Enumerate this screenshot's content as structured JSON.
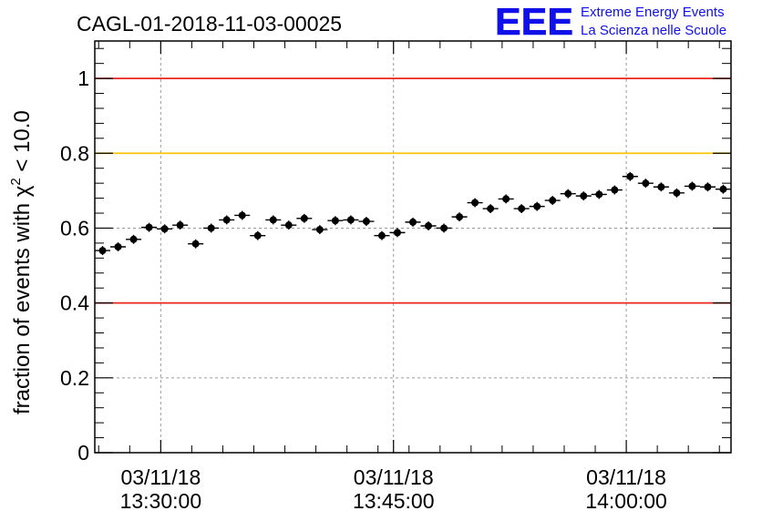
{
  "chart_data": {
    "type": "scatter",
    "title": "CAGL-01-2018-11-03-00025",
    "ylabel_main": "fraction of events with χ",
    "ylabel_sup": "2",
    "ylabel_tail": " < 10.0",
    "xlabel": "",
    "ylim": [
      0,
      1.1
    ],
    "xlim": [
      "2018-11-03 13:25:45",
      "2018-11-03 14:06:45"
    ],
    "grid": true,
    "yticks": [
      {
        "value": 0,
        "label": "0"
      },
      {
        "value": 0.2,
        "label": "0.2"
      },
      {
        "value": 0.4,
        "label": "0.4"
      },
      {
        "value": 0.6,
        "label": "0.6"
      },
      {
        "value": 0.8,
        "label": "0.8"
      },
      {
        "value": 1,
        "label": "1"
      }
    ],
    "xticks": [
      {
        "time": "2018-11-03 13:30:00",
        "date": "03/11/18",
        "clock": "13:30:00"
      },
      {
        "time": "2018-11-03 13:45:00",
        "date": "03/11/18",
        "clock": "13:45:00"
      },
      {
        "time": "2018-11-03 14:00:00",
        "date": "03/11/18",
        "clock": "14:00:00"
      }
    ],
    "reference_lines": [
      {
        "y": 1.0,
        "color": "#e8251e"
      },
      {
        "y": 0.8,
        "color": "#f7c60a"
      },
      {
        "y": 0.4,
        "color": "#e8251e"
      }
    ],
    "points": [
      {
        "t": "13:26:15",
        "y": 0.54
      },
      {
        "t": "13:27:15",
        "y": 0.55
      },
      {
        "t": "13:28:15",
        "y": 0.57
      },
      {
        "t": "13:29:15",
        "y": 0.602
      },
      {
        "t": "13:30:15",
        "y": 0.598
      },
      {
        "t": "13:31:15",
        "y": 0.608
      },
      {
        "t": "13:32:15",
        "y": 0.558
      },
      {
        "t": "13:33:15",
        "y": 0.6
      },
      {
        "t": "13:34:15",
        "y": 0.622
      },
      {
        "t": "13:35:15",
        "y": 0.634
      },
      {
        "t": "13:36:15",
        "y": 0.58
      },
      {
        "t": "13:37:15",
        "y": 0.622
      },
      {
        "t": "13:38:15",
        "y": 0.608
      },
      {
        "t": "13:39:15",
        "y": 0.626
      },
      {
        "t": "13:40:15",
        "y": 0.596
      },
      {
        "t": "13:41:15",
        "y": 0.62
      },
      {
        "t": "13:42:15",
        "y": 0.622
      },
      {
        "t": "13:43:15",
        "y": 0.618
      },
      {
        "t": "13:44:15",
        "y": 0.58
      },
      {
        "t": "13:45:15",
        "y": 0.588
      },
      {
        "t": "13:46:15",
        "y": 0.616
      },
      {
        "t": "13:47:15",
        "y": 0.606
      },
      {
        "t": "13:48:15",
        "y": 0.6
      },
      {
        "t": "13:49:15",
        "y": 0.63
      },
      {
        "t": "13:50:15",
        "y": 0.668
      },
      {
        "t": "13:51:15",
        "y": 0.652
      },
      {
        "t": "13:52:15",
        "y": 0.678
      },
      {
        "t": "13:53:15",
        "y": 0.652
      },
      {
        "t": "13:54:15",
        "y": 0.658
      },
      {
        "t": "13:55:15",
        "y": 0.674
      },
      {
        "t": "13:56:15",
        "y": 0.692
      },
      {
        "t": "13:57:15",
        "y": 0.686
      },
      {
        "t": "13:58:15",
        "y": 0.69
      },
      {
        "t": "13:59:15",
        "y": 0.702
      },
      {
        "t": "14:00:15",
        "y": 0.738
      },
      {
        "t": "14:01:15",
        "y": 0.72
      },
      {
        "t": "14:02:15",
        "y": 0.71
      },
      {
        "t": "14:03:15",
        "y": 0.694
      },
      {
        "t": "14:04:15",
        "y": 0.712
      },
      {
        "t": "14:05:15",
        "y": 0.71
      },
      {
        "t": "14:06:15",
        "y": 0.704
      }
    ],
    "bin_minutes": 1,
    "y_error": 0.012
  },
  "logo": {
    "mark": "EEE",
    "line1": "Extreme Energy Events",
    "line2": "La Scienza nelle Scuole",
    "color": "#1010e8"
  },
  "colors": {
    "marker": "#000000",
    "grid": "#9a9a9a",
    "frame": "#000000"
  }
}
